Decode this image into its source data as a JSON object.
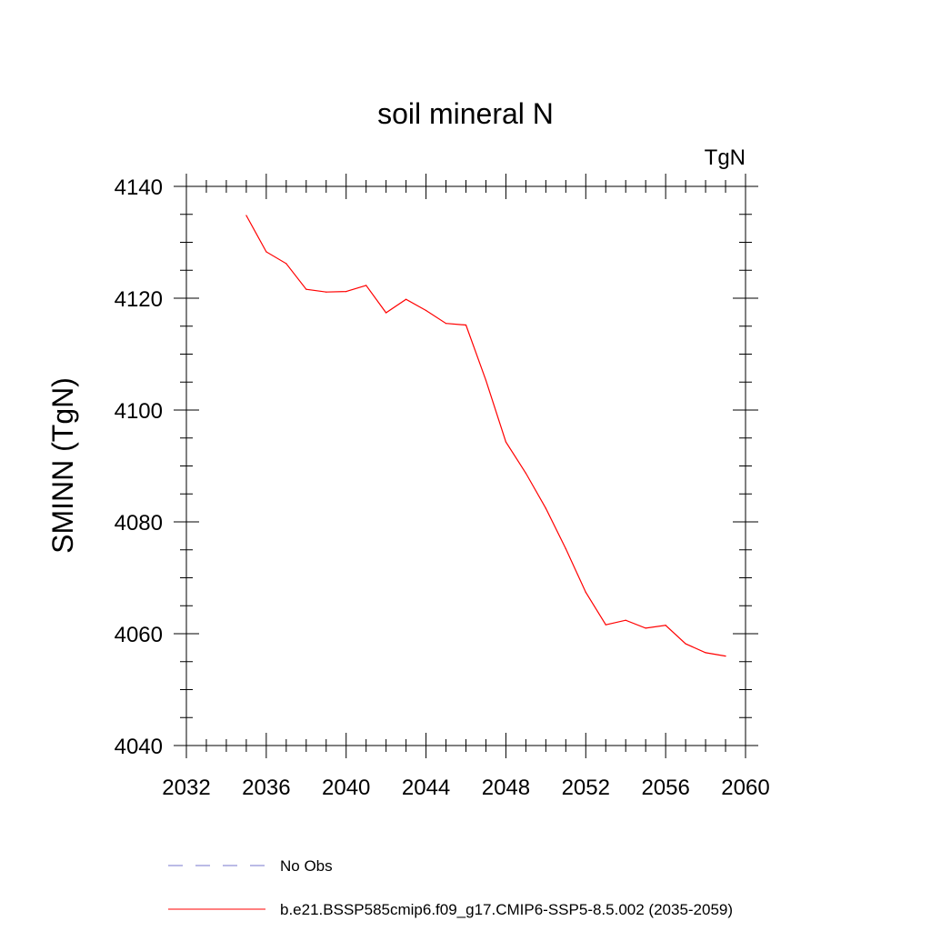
{
  "chart_data": {
    "type": "line",
    "title": "soil mineral N",
    "units_label": "TgN",
    "ylabel": "SMINN  (TgN)",
    "xlabel": "",
    "xlim": [
      2032,
      2060
    ],
    "ylim": [
      4040,
      4140
    ],
    "x_ticks": [
      2032,
      2036,
      2040,
      2044,
      2048,
      2052,
      2056,
      2060
    ],
    "y_ticks": [
      4040,
      4060,
      4080,
      4100,
      4120,
      4140
    ],
    "grid": false,
    "legend_position": "bottom",
    "series": [
      {
        "name": "b.e21.BSSP585cmip6.f09_g17.CMIP6-SSP5-8.5.002 (2035-2059)",
        "color": "#ff0000",
        "style": "solid",
        "x": [
          2035,
          2036,
          2037,
          2038,
          2039,
          2040,
          2041,
          2042,
          2043,
          2044,
          2045,
          2046,
          2047,
          2048,
          2049,
          2050,
          2051,
          2052,
          2053,
          2054,
          2055,
          2056,
          2057,
          2058,
          2059
        ],
        "y": [
          4134.8,
          4128.3,
          4126.2,
          4121.6,
          4121.1,
          4121.2,
          4122.3,
          4117.4,
          4119.8,
          4117.8,
          4115.5,
          4115.2,
          4105.3,
          4094.3,
          4088.7,
          4082.4,
          4075.2,
          4067.4,
          4061.6,
          4062.4,
          4061.0,
          4061.5,
          4058.2,
          4056.6,
          4056.0
        ]
      }
    ],
    "legend": [
      {
        "label": "No Obs",
        "color": "#7777cc",
        "style": "dashed"
      },
      {
        "label": "b.e21.BSSP585cmip6.f09_g17.CMIP6-SSP5-8.5.002 (2035-2059)",
        "color": "#ff0000",
        "style": "solid"
      }
    ]
  }
}
